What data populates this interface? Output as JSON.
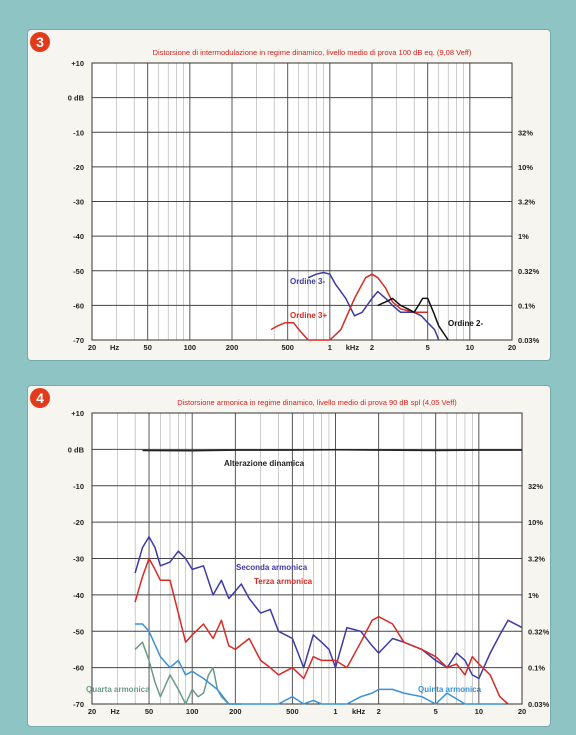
{
  "chart_data": [
    {
      "type": "line",
      "badge": "3",
      "title": "Distorsione di intermodulazione in regime dinamico, livello medio di prova 100 dB eq. (9,08 Veff)",
      "x_scale": "log",
      "xlim": [
        20,
        20000
      ],
      "ylim": [
        -70,
        10
      ],
      "x_ticks": [
        "20",
        "Hz",
        "50",
        "100",
        "200",
        "500",
        "1",
        "kHz",
        "2",
        "5",
        "10",
        "20"
      ],
      "y_ticks_left": [
        "+10",
        "0 dB",
        "-10",
        "-20",
        "-30",
        "-40",
        "-50",
        "-60",
        "-70"
      ],
      "y_ticks_right": [
        "32%",
        "10%",
        "3.2%",
        "1%",
        "0.32%",
        "0.1%",
        "0.03%"
      ],
      "grid": true,
      "series": [
        {
          "name": "Ordine 3-",
          "color": "#3b3aa0",
          "x": [
            700,
            800,
            900,
            1000,
            1100,
            1300,
            1500,
            1700,
            2000,
            2200,
            2500,
            2800,
            3200,
            3600,
            4000,
            4500,
            5000,
            5600,
            6000
          ],
          "y": [
            -52,
            -51,
            -50.5,
            -51,
            -54,
            -58,
            -63,
            -62,
            -58,
            -56,
            -58,
            -60,
            -62,
            -62,
            -62,
            -63,
            -65,
            -67,
            -70
          ]
        },
        {
          "name": "Ordine 3+",
          "color": "#d42c24",
          "x": [
            380,
            420,
            480,
            550,
            600,
            700,
            800,
            1000,
            1200,
            1500,
            1800,
            2000,
            2200,
            2500,
            2800,
            3200,
            3600,
            4000,
            4500,
            5000
          ],
          "y": [
            -67,
            -66,
            -65,
            -65,
            -67,
            -70,
            -70,
            -70,
            -67,
            -58,
            -52,
            -51,
            -52,
            -55,
            -59,
            -61,
            -61.5,
            -62,
            -62,
            -62
          ]
        },
        {
          "name": "Ordine 2-",
          "color": "#111111",
          "x": [
            2200,
            2500,
            2800,
            3200,
            3600,
            4000,
            4300,
            4600,
            5000,
            5500,
            6000,
            7000
          ],
          "y": [
            -60,
            -59,
            -58,
            -60,
            -61,
            -62,
            -60,
            -58,
            -58,
            -62,
            -66,
            -70
          ]
        }
      ]
    },
    {
      "type": "line",
      "badge": "4",
      "title": "Distorsione armonica in regime dinamico, livello medio di prova 90 dB spl (4,05 Veff)",
      "x_scale": "log",
      "xlim": [
        20,
        20000
      ],
      "ylim": [
        -70,
        10
      ],
      "x_ticks": [
        "20",
        "Hz",
        "50",
        "100",
        "200",
        "500",
        "1",
        "kHz",
        "2",
        "5",
        "10",
        "20"
      ],
      "y_ticks_left": [
        "+10",
        "0 dB",
        "-10",
        "-20",
        "-30",
        "-40",
        "-50",
        "-60",
        "-70"
      ],
      "y_ticks_right": [
        "32%",
        "10%",
        "3.2%",
        "1%",
        "0.32%",
        "0.1%",
        "0.03%"
      ],
      "grid": true,
      "series": [
        {
          "name": "Alterazione dinamica",
          "color": "#222222",
          "x": [
            45,
            100,
            200,
            500,
            1000,
            2000,
            5000,
            10000,
            20000
          ],
          "y": [
            -0.3,
            -0.4,
            -0.2,
            -0.2,
            -0.1,
            -0.2,
            -0.3,
            -0.2,
            -0.2
          ]
        },
        {
          "name": "Seconda armonica",
          "color": "#3d3aa8",
          "x": [
            40,
            45,
            50,
            55,
            60,
            70,
            80,
            90,
            100,
            120,
            140,
            160,
            180,
            200,
            220,
            250,
            300,
            350,
            400,
            500,
            600,
            700,
            800,
            900,
            1000,
            1200,
            1500,
            1800,
            2000,
            2500,
            3000,
            4000,
            5000,
            6000,
            7000,
            8000,
            9000,
            10000,
            12000,
            14000,
            16000,
            20000
          ],
          "y": [
            -34,
            -27,
            -24,
            -27,
            -32,
            -31,
            -28,
            -30,
            -33,
            -32,
            -40,
            -36,
            -41,
            -39,
            -37,
            -41,
            -45,
            -44,
            -50,
            -52,
            -60,
            -51,
            -53,
            -55,
            -60,
            -49,
            -50,
            -54,
            -56,
            -52,
            -53,
            -55,
            -58,
            -60,
            -56,
            -58,
            -62,
            -63,
            -56,
            -51,
            -47,
            -49
          ]
        },
        {
          "name": "Terza armonica",
          "color": "#d82a24",
          "x": [
            40,
            45,
            50,
            55,
            60,
            70,
            80,
            90,
            100,
            120,
            140,
            160,
            180,
            200,
            250,
            300,
            350,
            400,
            500,
            600,
            700,
            800,
            1000,
            1200,
            1500,
            1800,
            2000,
            2500,
            3000,
            4000,
            5000,
            6000,
            7000,
            8000,
            9000,
            10000,
            12000,
            14000,
            16000
          ],
          "y": [
            -42,
            -35,
            -30,
            -33,
            -36,
            -36,
            -45,
            -53,
            -51,
            -48,
            -52,
            -47,
            -54,
            -55,
            -52,
            -58,
            -60,
            -62,
            -60,
            -63,
            -57,
            -58,
            -58,
            -60,
            -53,
            -47,
            -46,
            -48,
            -53,
            -55,
            -57,
            -60,
            -59,
            -62,
            -57,
            -59,
            -62,
            -68,
            -70
          ]
        },
        {
          "name": "Quarta armonica",
          "color": "#6a9a8a",
          "x": [
            40,
            45,
            50,
            55,
            60,
            70,
            80,
            90,
            100,
            110,
            120,
            130,
            140,
            150,
            160,
            180,
            200,
            220
          ],
          "y": [
            -55,
            -53,
            -58,
            -64,
            -68,
            -62,
            -66,
            -70,
            -66,
            -68,
            -67,
            -62,
            -60,
            -66,
            -68,
            -70,
            -70,
            -70
          ]
        },
        {
          "name": "Quinta armonica",
          "color": "#3a92d6",
          "x": [
            40,
            45,
            50,
            60,
            70,
            80,
            90,
            100,
            120,
            150,
            180,
            200,
            250,
            300,
            400,
            500,
            600,
            700,
            800,
            1000,
            1200,
            1500,
            1800,
            2000,
            2500,
            3000,
            4000,
            5000,
            6000,
            8000,
            10000,
            12000,
            15000
          ],
          "y": [
            -48,
            -48,
            -50,
            -57,
            -60,
            -58,
            -62,
            -61,
            -63,
            -66,
            -70,
            -70,
            -70,
            -70,
            -70,
            -68,
            -70,
            -69,
            -70,
            -70,
            -70,
            -68,
            -67,
            -66,
            -66,
            -67,
            -68,
            -70,
            -67,
            -70,
            -70,
            -70,
            -70
          ]
        }
      ],
      "annotations": [
        "Alterazione dinamica",
        "Seconda armonica",
        "Terza armonica",
        "Quarta armonica",
        "Quinta armonica"
      ]
    }
  ]
}
